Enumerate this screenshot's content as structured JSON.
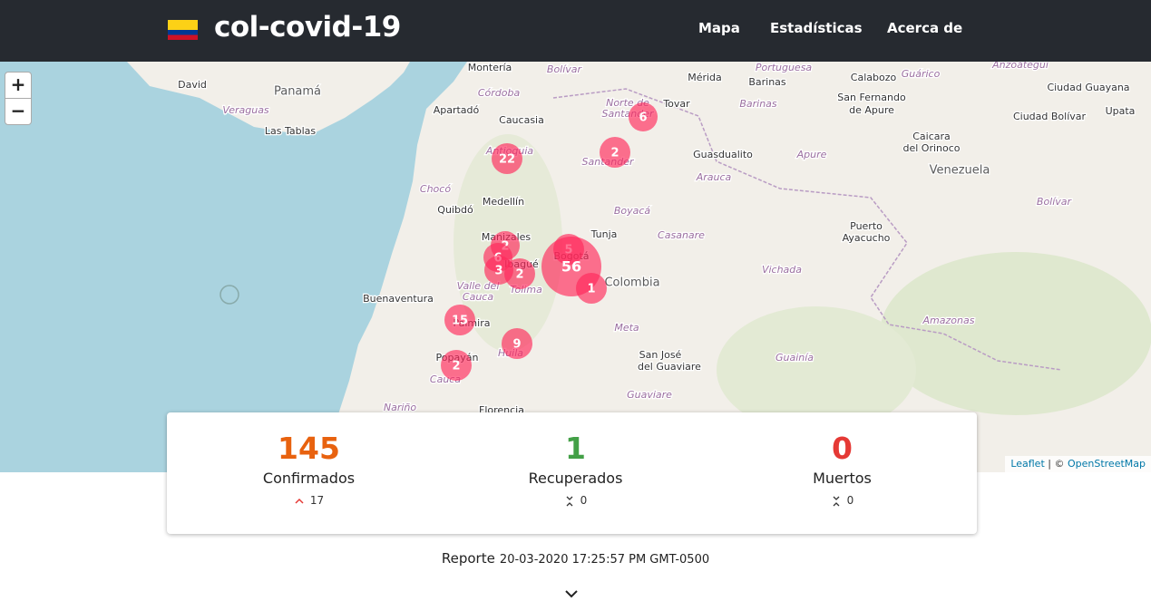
{
  "navbar": {
    "brand": "col-covid-19",
    "links": [
      "Mapa",
      "Estadísticas",
      "Acerca de"
    ]
  },
  "map": {
    "zoom_in": "+",
    "zoom_out": "−",
    "labels": [
      "Montería",
      "Bolívar",
      "David",
      "Panamá",
      "Mérida",
      "Barinas",
      "Portuguesa",
      "Calabozo",
      "Guárico",
      "Anzoátegui",
      "Ciudad Guayana",
      "Córdoba",
      "Veraguas",
      "Apartadó",
      "Norte de",
      "Santander",
      "Tovar",
      "Barinas",
      "San Fernando",
      "de Apure",
      "Ciudad Bolívar",
      "Upata",
      "Las Tablas",
      "Caucasia",
      "Caicara",
      "del Orinoco",
      "Guasdualito",
      "Apure",
      "Santander",
      "Antioquia",
      "Venezuela",
      "Arauca",
      "Chocó",
      "Medellín",
      "Quibdó",
      "Boyacá",
      "Bolívar",
      "Puerto",
      "Ayacucho",
      "Tunja",
      "Casanare",
      "Manizales",
      "Bogotá",
      "Ibagué",
      "Colombia",
      "Vichada",
      "Valle del",
      "Cauca",
      "Tolima",
      "Buenaventura",
      "Palmira",
      "Meta",
      "Amazonas",
      "San José",
      "del Guaviare",
      "Popayán",
      "Huila",
      "Guainía",
      "Cauca",
      "Guaviare",
      "Nariño",
      "Florencia"
    ],
    "clusters": [
      6,
      2,
      22,
      2,
      6,
      3,
      2,
      5,
      56,
      1,
      15,
      9,
      2
    ],
    "attribution": {
      "leaflet": "Leaflet",
      "separator": "| ©",
      "osm": "OpenStreetMap"
    }
  },
  "stats": [
    {
      "value": 145,
      "label": "Confirmados",
      "change": 17
    },
    {
      "value": 1,
      "label": "Recuperados",
      "change": 0
    },
    {
      "value": 0,
      "label": "Muertos",
      "change": 0
    }
  ],
  "report": {
    "label": "Reporte",
    "timestamp": "20-03-2020 17:25:57 PM GMT-0500"
  }
}
